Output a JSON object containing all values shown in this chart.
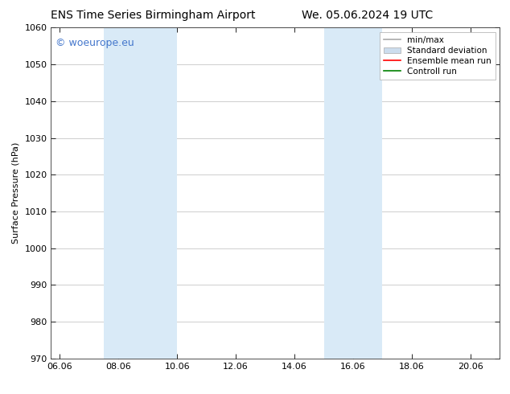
{
  "title_left": "ENS Time Series Birmingham Airport",
  "title_right": "We. 05.06.2024 19 UTC",
  "ylabel": "Surface Pressure (hPa)",
  "xlabel_ticks": [
    "06.06",
    "08.06",
    "10.06",
    "12.06",
    "14.06",
    "16.06",
    "18.06",
    "20.06"
  ],
  "xtick_positions": [
    0,
    2,
    4,
    6,
    8,
    10,
    12,
    14
  ],
  "xlim": [
    -0.3,
    15.0
  ],
  "ylim": [
    970,
    1060
  ],
  "yticks": [
    970,
    980,
    990,
    1000,
    1010,
    1020,
    1030,
    1040,
    1050,
    1060
  ],
  "shaded_bands": [
    {
      "x_start": 1.5,
      "x_end": 2.5,
      "color": "#d9eaf7"
    },
    {
      "x_start": 2.5,
      "x_end": 4.0,
      "color": "#d9eaf7"
    },
    {
      "x_start": 9.0,
      "x_end": 10.0,
      "color": "#d9eaf7"
    },
    {
      "x_start": 10.0,
      "x_end": 11.0,
      "color": "#d9eaf7"
    }
  ],
  "watermark_text": "© woeurope.eu",
  "watermark_color": "#4477cc",
  "watermark_fontsize": 9,
  "legend_items": [
    {
      "label": "min/max",
      "color": "#aaaaaa",
      "linestyle": "-",
      "linewidth": 1.2
    },
    {
      "label": "Standard deviation",
      "color": "#ccddee",
      "linestyle": "-",
      "linewidth": 6
    },
    {
      "label": "Ensemble mean run",
      "color": "red",
      "linestyle": "-",
      "linewidth": 1.2
    },
    {
      "label": "Controll run",
      "color": "green",
      "linestyle": "-",
      "linewidth": 1.2
    }
  ],
  "background_color": "#ffffff",
  "grid_color": "#bbbbbb",
  "title_fontsize": 10,
  "axis_fontsize": 8,
  "tick_fontsize": 8,
  "legend_fontsize": 7.5
}
